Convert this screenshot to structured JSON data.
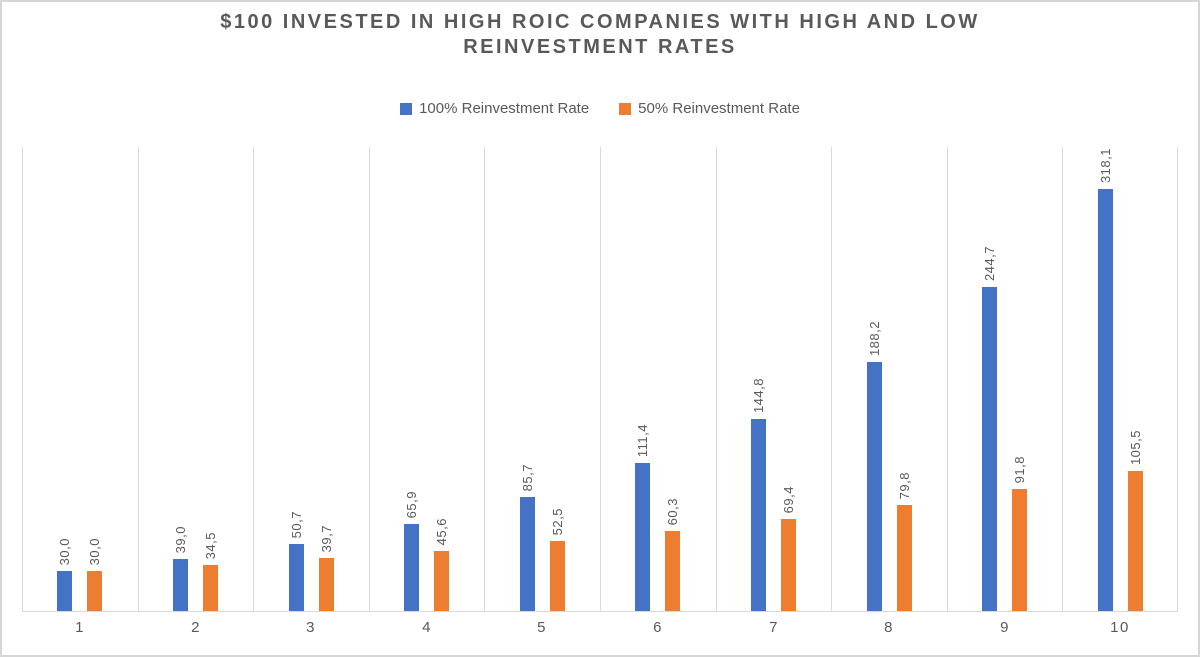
{
  "header": {
    "title_lines": [
      "$100 INVESTED IN HIGH ROIC COMPANIES WITH HIGH AND LOW",
      "REINVESTMENT RATES"
    ]
  },
  "chart_data": {
    "type": "bar",
    "title": "$100 INVESTED IN HIGH ROIC COMPANIES WITH HIGH AND LOW REINVESTMENT RATES",
    "categories": [
      "1",
      "2",
      "3",
      "4",
      "5",
      "6",
      "7",
      "8",
      "9",
      "10"
    ],
    "series": [
      {
        "name": "100% Reinvestment Rate",
        "color": "#4472C4",
        "values": [
          30.0,
          39.0,
          50.7,
          65.9,
          85.7,
          111.4,
          144.8,
          188.2,
          244.7,
          318.1
        ],
        "data_labels": [
          "30,0",
          "39,0",
          "50,7",
          "65,9",
          "85,7",
          "111,4",
          "144,8",
          "188,2",
          "244,7",
          "318,1"
        ]
      },
      {
        "name": "50% Reinvestment Rate",
        "color": "#ED7D31",
        "values": [
          30.0,
          34.5,
          39.7,
          45.6,
          52.5,
          60.3,
          69.4,
          79.8,
          91.8,
          105.5
        ],
        "data_labels": [
          "30,0",
          "34,5",
          "39,7",
          "45,6",
          "52,5",
          "60,3",
          "69,4",
          "79,8",
          "91,8",
          "105,5"
        ]
      }
    ],
    "xlabel": "",
    "ylabel": "",
    "ylim": [
      0,
      350
    ],
    "y_axis_visible": false,
    "gridlines": "vertical-category-boundaries",
    "legend_position": "top",
    "data_label_rotation": "vertical-bottom-to-top",
    "decimal_separator": ","
  },
  "style": {
    "text_color": "#595959",
    "grid_color": "#D9D9D9",
    "axis_color": "#D9D9D9",
    "frame_border_color": "#D6D6D6",
    "background": "#FFFFFF"
  }
}
